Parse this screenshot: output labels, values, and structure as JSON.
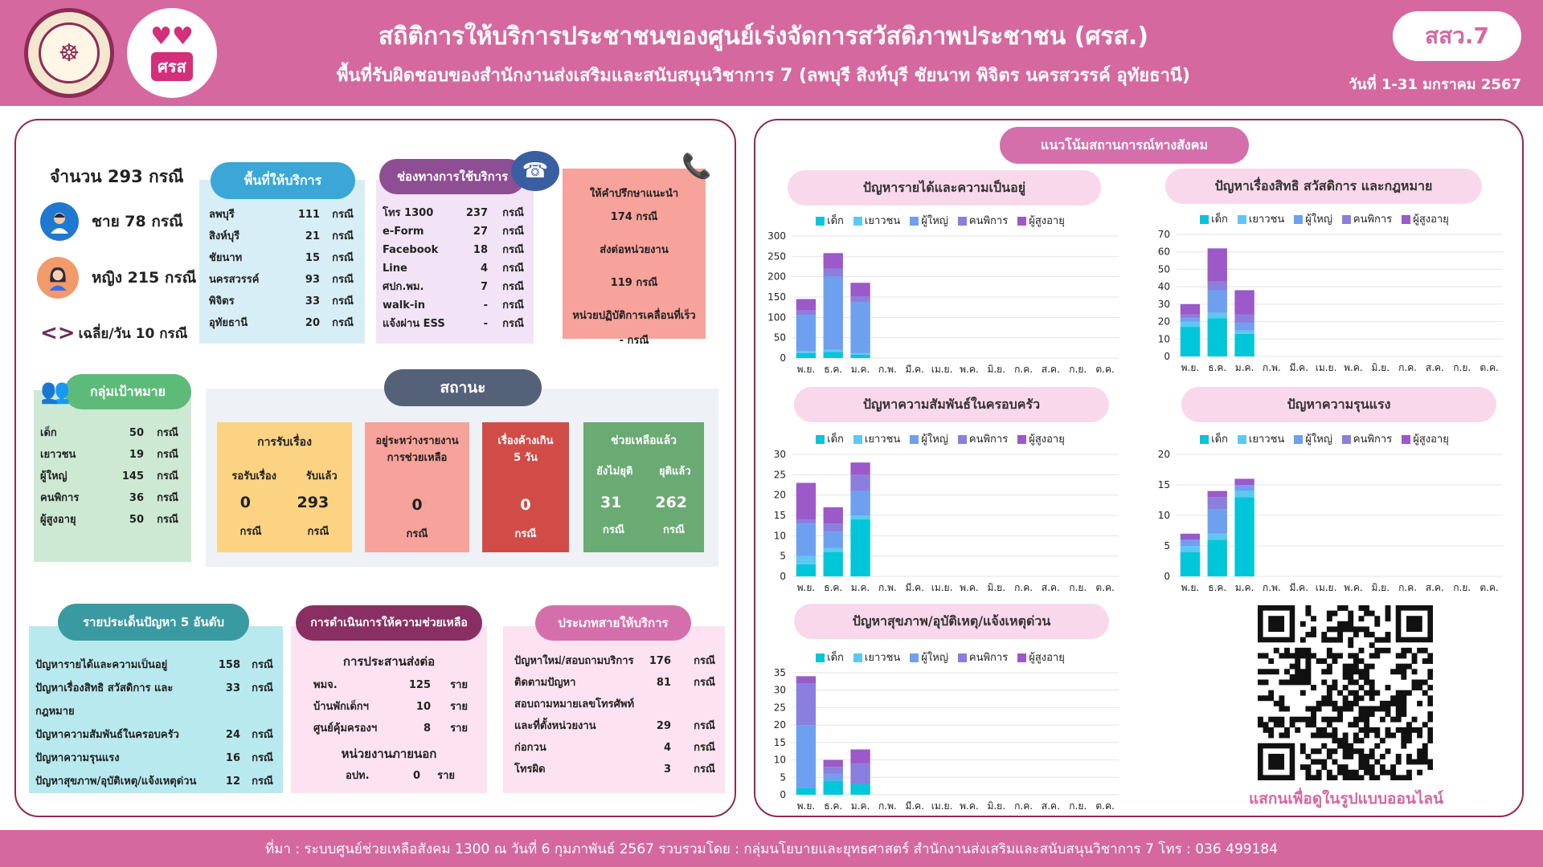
{
  "header": {
    "title": "สถิติการให้บริการประชาชนของศูนย์เร่งจัดการสวัสดิภาพประชาชน (ศรส.)",
    "subtitle": "พื้นที่รับผิดชอบของสำนักงานส่งเสริมและสนับสนุนวิชาการ 7 (ลพบุรี สิงห์บุรี ชัยนาท พิจิตร นครสวรรค์ อุทัยธานี)",
    "code": "สสว.7",
    "date": "วันที่ 1-31 มกราคม 2567",
    "logo2_text": "ศรส"
  },
  "summary": {
    "total": "จำนวน 293 กรณี",
    "male": "ชาย 78 กรณี",
    "female": "หญิง 215 กรณี",
    "avg": "เฉลี่ย/วัน 10 กรณี"
  },
  "area": {
    "title": "พื้นที่ให้บริการ",
    "rows": [
      [
        "ลพบุรี",
        "111",
        "กรณี"
      ],
      [
        "สิงห์บุรี",
        "21",
        "กรณี"
      ],
      [
        "ชัยนาท",
        "15",
        "กรณี"
      ],
      [
        "นครสวรรค์",
        "93",
        "กรณี"
      ],
      [
        "พิจิตร",
        "33",
        "กรณี"
      ],
      [
        "อุทัยธานี",
        "20",
        "กรณี"
      ]
    ]
  },
  "channel": {
    "title": "ช่องทางการใช้บริการ",
    "rows": [
      [
        "โทร 1300",
        "237",
        "กรณี"
      ],
      [
        "e-Form",
        "27",
        "กรณี"
      ],
      [
        "Facebook",
        "18",
        "กรณี"
      ],
      [
        "Line",
        "4",
        "กรณี"
      ],
      [
        "ศปก.พม.",
        "7",
        "กรณี"
      ],
      [
        "walk-in",
        "-",
        "กรณี"
      ],
      [
        "แจ้งผ่าน ESS",
        "-",
        "กรณี"
      ]
    ]
  },
  "consult": {
    "l1": "ให้คำปรึกษาแนะนำ",
    "v1": "174  กรณี",
    "l2": "ส่งต่อหน่วยงาน",
    "v2": "119  กรณี",
    "l3": "หน่วยปฏิบัติการเคลื่อนที่เร็ว",
    "v3": "-     กรณี"
  },
  "target": {
    "title": "กลุ่มเป้าหมาย",
    "rows": [
      [
        "เด็ก",
        "50",
        "กรณี"
      ],
      [
        "เยาวชน",
        "19",
        "กรณี"
      ],
      [
        "ผู้ใหญ่",
        "145",
        "กรณี"
      ],
      [
        "คนพิการ",
        "36",
        "กรณี"
      ],
      [
        "ผู้สูงอายุ",
        "50",
        "กรณี"
      ]
    ]
  },
  "status": {
    "title": "สถานะ",
    "receive": {
      "title": "การรับเรื่อง",
      "c1": "รอรับเรื่อง",
      "c2": "รับแล้ว",
      "v1": "0",
      "v2": "293",
      "u1": "กรณี",
      "u2": "กรณี"
    },
    "pending": {
      "title": "อยู่ระหว่างรายงานการช่วยเหลือ",
      "v": "0",
      "u": "กรณี"
    },
    "overdue": {
      "title": "เรื่องค้างเกิน 5 วัน",
      "v": "0",
      "u": "กรณี"
    },
    "helped": {
      "title": "ช่วยเหลือแล้ว",
      "c1": "ยังไม่ยุติ",
      "c2": "ยุติแล้ว",
      "v1": "31",
      "v2": "262",
      "u1": "กรณี",
      "u2": "กรณี"
    }
  },
  "top5": {
    "title": "รายประเด็นปัญหา 5 อันดับ",
    "rows": [
      [
        "ปัญหารายได้และความเป็นอยู่",
        "158",
        "กรณี"
      ],
      [
        "ปัญหาเรื่องสิทธิ สวัสดิการ และกฎหมาย",
        "33",
        "กรณี"
      ],
      [
        "ปัญหาความสัมพันธ์ในครอบครัว",
        "24",
        "กรณี"
      ],
      [
        "ปัญหาความรุนแรง",
        "16",
        "กรณี"
      ],
      [
        "ปัญหาสุขภาพ/อุบัติเหตุ/แจ้งเหตุด่วน",
        "12",
        "กรณี"
      ]
    ]
  },
  "assist": {
    "title": "การดำเนินการให้ความช่วยเหลือ",
    "sub1": "การประสานส่งต่อ",
    "rows": [
      [
        "พมจ.",
        "125",
        "ราย"
      ],
      [
        "บ้านพักเด็กฯ",
        "10",
        "ราย"
      ],
      [
        "ศูนย์คุ้มครองฯ",
        "8",
        "ราย"
      ]
    ],
    "sub2": "หน่วยงานภายนอก",
    "rows2": [
      [
        "อปท.",
        "0",
        "ราย"
      ]
    ]
  },
  "linetype": {
    "title": "ประเภทสายให้บริการ",
    "rows": [
      [
        "ปัญหาใหม่/สอบถามบริการ",
        "176",
        "กรณี"
      ],
      [
        "ติดตามปัญหา",
        "81",
        "กรณี"
      ],
      [
        "สอบถามหมายเลขโทรศัพท์",
        "",
        " "
      ],
      [
        "และที่ตั้งหน่วยงาน",
        "29",
        "กรณี"
      ],
      [
        "ก่อกวน",
        "4",
        "กรณี"
      ],
      [
        "โทรผิด",
        "3",
        "กรณี"
      ]
    ]
  },
  "trend": {
    "title": "แนวโน้มสถานการณ์ทางสังคม"
  },
  "legend": [
    "เด็ก",
    "เยาวชน",
    "ผู้ใหญ่",
    "คนพิการ",
    "ผู้สูงอายุ"
  ],
  "colors": [
    "#00c6d9",
    "#5ec8f2",
    "#6ea0f0",
    "#8a7fdf",
    "#9b59c9"
  ],
  "months": [
    "พ.ย.",
    "ธ.ค.",
    "ม.ค.",
    "ก.พ.",
    "มี.ค.",
    "เม.ย.",
    "พ.ค.",
    "มิ.ย.",
    "ก.ค.",
    "ส.ค.",
    "ก.ย.",
    "ต.ค."
  ],
  "chart_data": [
    {
      "type": "bar",
      "title": "ปัญหารายได้และความเป็นอยู่",
      "ylim": [
        0,
        300
      ],
      "yticks": [
        0,
        50,
        100,
        150,
        200,
        250,
        300
      ],
      "series": [
        {
          "name": "เด็ก",
          "values": [
            12,
            15,
            8
          ]
        },
        {
          "name": "เยาวชน",
          "values": [
            5,
            5,
            4
          ]
        },
        {
          "name": "ผู้ใหญ่",
          "values": [
            88,
            180,
            125
          ]
        },
        {
          "name": "คนพิการ",
          "values": [
            12,
            20,
            15
          ]
        },
        {
          "name": "ผู้สูงอายุ",
          "values": [
            28,
            38,
            33
          ]
        }
      ]
    },
    {
      "type": "bar",
      "title": "ปัญหาเรื่องสิทธิ สวัสดิการ และกฎหมาย",
      "ylim": [
        0,
        70
      ],
      "yticks": [
        0,
        10,
        20,
        30,
        40,
        50,
        60,
        70
      ],
      "series": [
        {
          "name": "เด็ก",
          "values": [
            17,
            22,
            13
          ]
        },
        {
          "name": "เยาวชน",
          "values": [
            3,
            3,
            2
          ]
        },
        {
          "name": "ผู้ใหญ่",
          "values": [
            2,
            13,
            4
          ]
        },
        {
          "name": "คนพิการ",
          "values": [
            2,
            5,
            5
          ]
        },
        {
          "name": "ผู้สูงอายุ",
          "values": [
            6,
            19,
            14
          ]
        }
      ]
    },
    {
      "type": "bar",
      "title": "ปัญหาความสัมพันธ์ในครอบครัว",
      "ylim": [
        0,
        30
      ],
      "yticks": [
        0,
        5,
        10,
        15,
        20,
        25,
        30
      ],
      "series": [
        {
          "name": "เด็ก",
          "values": [
            3,
            6,
            14
          ]
        },
        {
          "name": "เยาวชน",
          "values": [
            2,
            1,
            1
          ]
        },
        {
          "name": "ผู้ใหญ่",
          "values": [
            8,
            4,
            6
          ]
        },
        {
          "name": "คนพิการ",
          "values": [
            1,
            2,
            4
          ]
        },
        {
          "name": "ผู้สูงอายุ",
          "values": [
            9,
            4,
            3
          ]
        }
      ]
    },
    {
      "type": "bar",
      "title": "ปัญหาความรุนแรง",
      "ylim": [
        0,
        20
      ],
      "yticks": [
        0,
        5,
        10,
        15,
        20
      ],
      "series": [
        {
          "name": "เด็ก",
          "values": [
            4,
            6,
            13
          ]
        },
        {
          "name": "เยาวชน",
          "values": [
            1,
            1,
            1
          ]
        },
        {
          "name": "ผู้ใหญ่",
          "values": [
            1,
            4,
            1
          ]
        },
        {
          "name": "คนพิการ",
          "values": [
            0,
            2,
            0
          ]
        },
        {
          "name": "ผู้สูงอายุ",
          "values": [
            1,
            1,
            1
          ]
        }
      ]
    },
    {
      "type": "bar",
      "title": "ปัญหาสุขภาพ/อุบัติเหตุ/แจ้งเหตุด่วน",
      "ylim": [
        0,
        35
      ],
      "yticks": [
        0,
        5,
        10,
        15,
        20,
        25,
        30,
        35
      ],
      "series": [
        {
          "name": "เด็ก",
          "values": [
            2,
            4,
            3
          ]
        },
        {
          "name": "เยาวชน",
          "values": [
            0,
            0,
            0
          ]
        },
        {
          "name": "ผู้ใหญ่",
          "values": [
            18,
            2,
            0
          ]
        },
        {
          "name": "คนพิการ",
          "values": [
            12,
            2,
            6
          ]
        },
        {
          "name": "ผู้สูงอายุ",
          "values": [
            2,
            2,
            4
          ]
        }
      ]
    }
  ],
  "qr": {
    "caption": "แสกนเพื่อดูในรูปแบบออนไลน์"
  },
  "footer": "ที่มา : ระบบศูนย์ช่วยเหลือสังคม 1300  ณ วันที่  6 กุมภาพันธ์ 2567  รวบรวมโดย : กลุ่มนโยบายและยุทธศาสตร์ สำนักงานส่งเสริมและสนับสนุนวิชาการ 7 โทร : 036 499184"
}
